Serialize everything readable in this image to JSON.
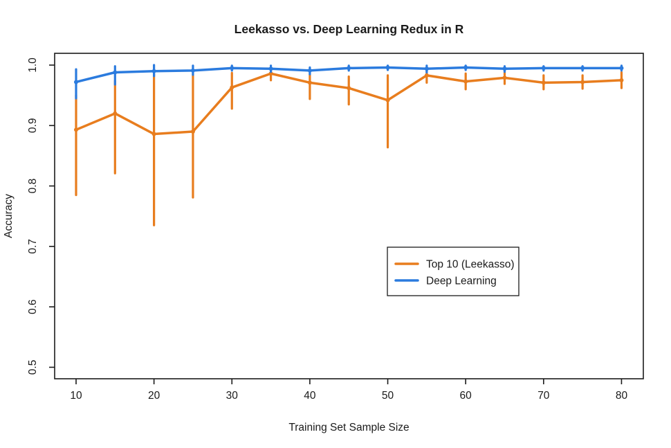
{
  "chart_data": {
    "type": "line",
    "title": "Leekasso vs. Deep Learning Redux in R",
    "xlabel": "Training Set Sample Size",
    "ylabel": "Accuracy",
    "x": [
      10,
      15,
      20,
      25,
      30,
      35,
      40,
      45,
      50,
      55,
      60,
      65,
      70,
      75,
      80
    ],
    "xticks": [
      10,
      20,
      30,
      40,
      50,
      60,
      70,
      80
    ],
    "yticks": [
      0.5,
      0.6,
      0.7,
      0.8,
      0.9,
      1.0
    ],
    "xlim": [
      7.25,
      82.8
    ],
    "ylim": [
      0.481,
      1.0195
    ],
    "grid": false,
    "legend_position": "inside-right-middle",
    "axis_color": "#1a1a1a",
    "background_color": "#ffffff",
    "series": [
      {
        "name": "Top 10 (Leekasso)",
        "color": "#E87D1E",
        "values": [
          0.893,
          0.92,
          0.886,
          0.89,
          0.963,
          0.986,
          0.971,
          0.962,
          0.942,
          0.983,
          0.973,
          0.979,
          0.971,
          0.972,
          0.975
        ],
        "err_low": [
          0.785,
          0.821,
          0.735,
          0.781,
          0.928,
          0.975,
          0.944,
          0.935,
          0.864,
          0.971,
          0.96,
          0.969,
          0.96,
          0.961,
          0.962
        ],
        "err_high": [
          0.95,
          0.974,
          0.985,
          0.985,
          0.987,
          0.995,
          0.985,
          0.981,
          0.983,
          0.99,
          0.986,
          0.989,
          0.983,
          0.983,
          0.988
        ]
      },
      {
        "name": "Deep Learning",
        "color": "#2B7BDE",
        "values": [
          0.972,
          0.988,
          0.99,
          0.991,
          0.995,
          0.994,
          0.991,
          0.995,
          0.996,
          0.994,
          0.996,
          0.994,
          0.995,
          0.995,
          0.995
        ],
        "err_low": [
          0.945,
          0.968,
          0.982,
          0.984,
          0.991,
          0.989,
          0.985,
          0.991,
          0.992,
          0.988,
          0.992,
          0.989,
          0.991,
          0.991,
          0.991
        ],
        "err_high": [
          0.993,
          0.998,
          1.0,
          0.999,
          0.999,
          0.999,
          0.996,
          0.999,
          0.999,
          0.999,
          0.999,
          0.998,
          0.998,
          0.998,
          0.999
        ]
      }
    ]
  }
}
